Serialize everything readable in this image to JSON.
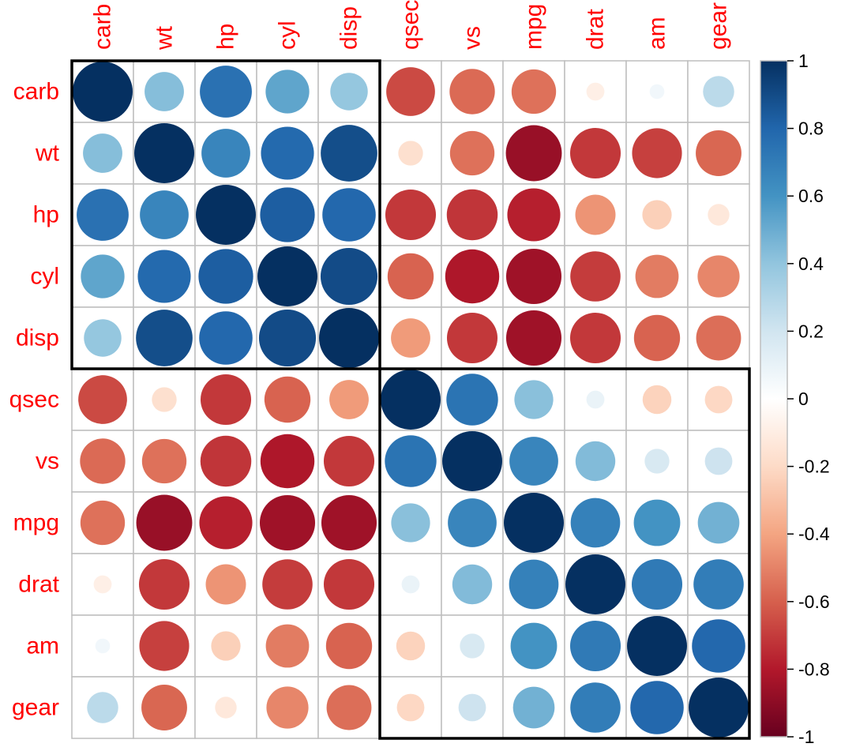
{
  "chart_data": {
    "type": "heatmap",
    "subtype": "corrplot-circle",
    "variables": [
      "carb",
      "wt",
      "hp",
      "cyl",
      "disp",
      "qsec",
      "vs",
      "mpg",
      "drat",
      "am",
      "gear"
    ],
    "matrix": [
      [
        1.0,
        0.43,
        0.75,
        0.53,
        0.39,
        -0.66,
        -0.57,
        -0.55,
        -0.09,
        0.06,
        0.27
      ],
      [
        0.43,
        1.0,
        0.66,
        0.78,
        0.89,
        -0.17,
        -0.55,
        -0.87,
        -0.71,
        -0.69,
        -0.58
      ],
      [
        0.75,
        0.66,
        1.0,
        0.83,
        0.79,
        -0.71,
        -0.72,
        -0.78,
        -0.45,
        -0.24,
        -0.13
      ],
      [
        0.53,
        0.78,
        0.83,
        1.0,
        0.9,
        -0.59,
        -0.81,
        -0.85,
        -0.7,
        -0.52,
        -0.49
      ],
      [
        0.39,
        0.89,
        0.79,
        0.9,
        1.0,
        -0.43,
        -0.71,
        -0.85,
        -0.71,
        -0.59,
        -0.56
      ],
      [
        -0.66,
        -0.17,
        -0.71,
        -0.59,
        -0.43,
        1.0,
        0.74,
        0.42,
        0.09,
        -0.23,
        -0.21
      ],
      [
        -0.57,
        -0.55,
        -0.72,
        -0.81,
        -0.71,
        0.74,
        1.0,
        0.66,
        0.44,
        0.17,
        0.21
      ],
      [
        -0.55,
        -0.87,
        -0.78,
        -0.85,
        -0.85,
        0.42,
        0.66,
        1.0,
        0.68,
        0.6,
        0.48
      ],
      [
        -0.09,
        -0.71,
        -0.45,
        -0.7,
        -0.71,
        0.09,
        0.44,
        0.68,
        1.0,
        0.71,
        0.7
      ],
      [
        0.06,
        -0.69,
        -0.24,
        -0.52,
        -0.59,
        -0.23,
        0.17,
        0.6,
        0.71,
        1.0,
        0.79
      ],
      [
        0.27,
        -0.58,
        -0.13,
        -0.49,
        -0.56,
        -0.21,
        0.21,
        0.48,
        0.7,
        0.79,
        1.0
      ]
    ],
    "clusters": [
      {
        "from": "carb",
        "to": "disp"
      },
      {
        "from": "qsec",
        "to": "gear"
      }
    ],
    "colorbar": {
      "range": [
        -1,
        1
      ],
      "ticks": [
        1,
        0.8,
        0.6,
        0.4,
        0.2,
        0,
        -0.2,
        -0.4,
        -0.6,
        -0.8,
        -1
      ],
      "tick_labels": [
        "1",
        "0.8",
        "0.6",
        "0.4",
        "0.2",
        "0",
        "-0.2",
        "-0.4",
        "-0.6",
        "-0.8",
        "-1"
      ]
    },
    "label_color": "#ff0000",
    "grid_color": "#bebebe",
    "palette": [
      "#67001F",
      "#B2182B",
      "#D6604D",
      "#F4A582",
      "#FDDBC7",
      "#FFFFFF",
      "#D1E5F0",
      "#92C5DE",
      "#4393C3",
      "#2166AC",
      "#053061"
    ]
  }
}
